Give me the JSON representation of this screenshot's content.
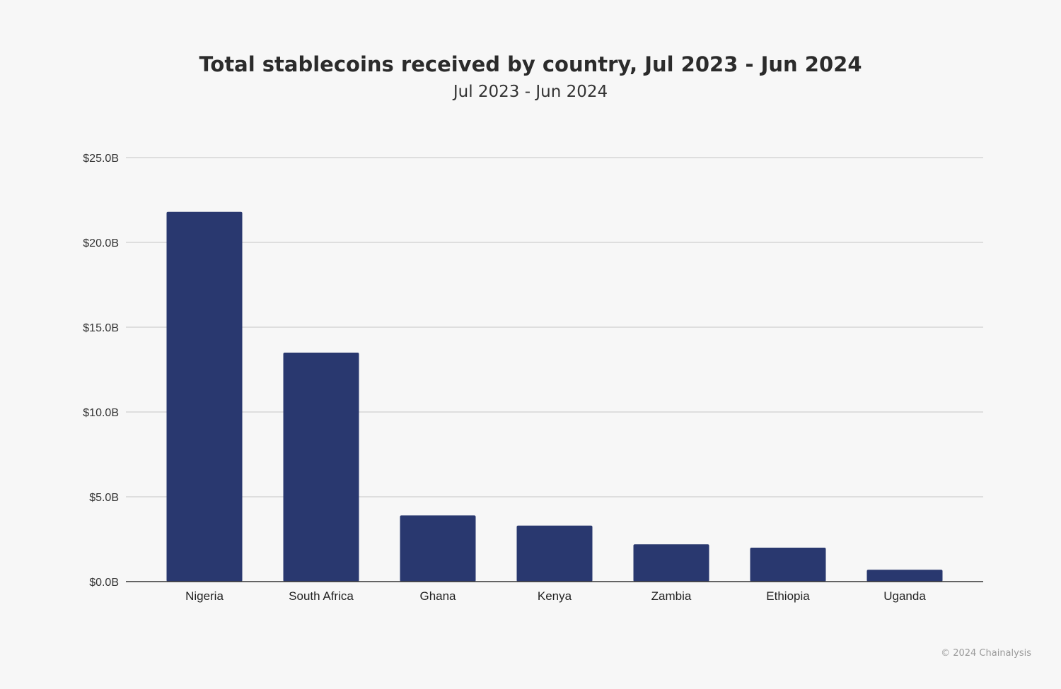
{
  "chart_data": {
    "type": "bar",
    "title": "Total stablecoins received by country, Jul 2023 - Jun 2024",
    "subtitle": "Jul 2023 - Jun 2024",
    "categories": [
      "Nigeria",
      "South Africa",
      "Ghana",
      "Kenya",
      "Zambia",
      "Ethiopia",
      "Uganda"
    ],
    "values": [
      21.8,
      13.5,
      3.9,
      3.3,
      2.2,
      2.0,
      0.7
    ],
    "unit": "billion USD",
    "ylim": [
      0,
      25
    ],
    "yticks": [
      0,
      5,
      10,
      15,
      20,
      25
    ],
    "ytick_labels": [
      "$0.0B",
      "$5.0B",
      "$10.0B",
      "$15.0B",
      "$20.0B",
      "$25.0B"
    ],
    "xlabel": "",
    "ylabel": "",
    "grid": true,
    "bar_color": "#29386f"
  },
  "footer": {
    "copyright": "© 2024 Chainalysis"
  }
}
